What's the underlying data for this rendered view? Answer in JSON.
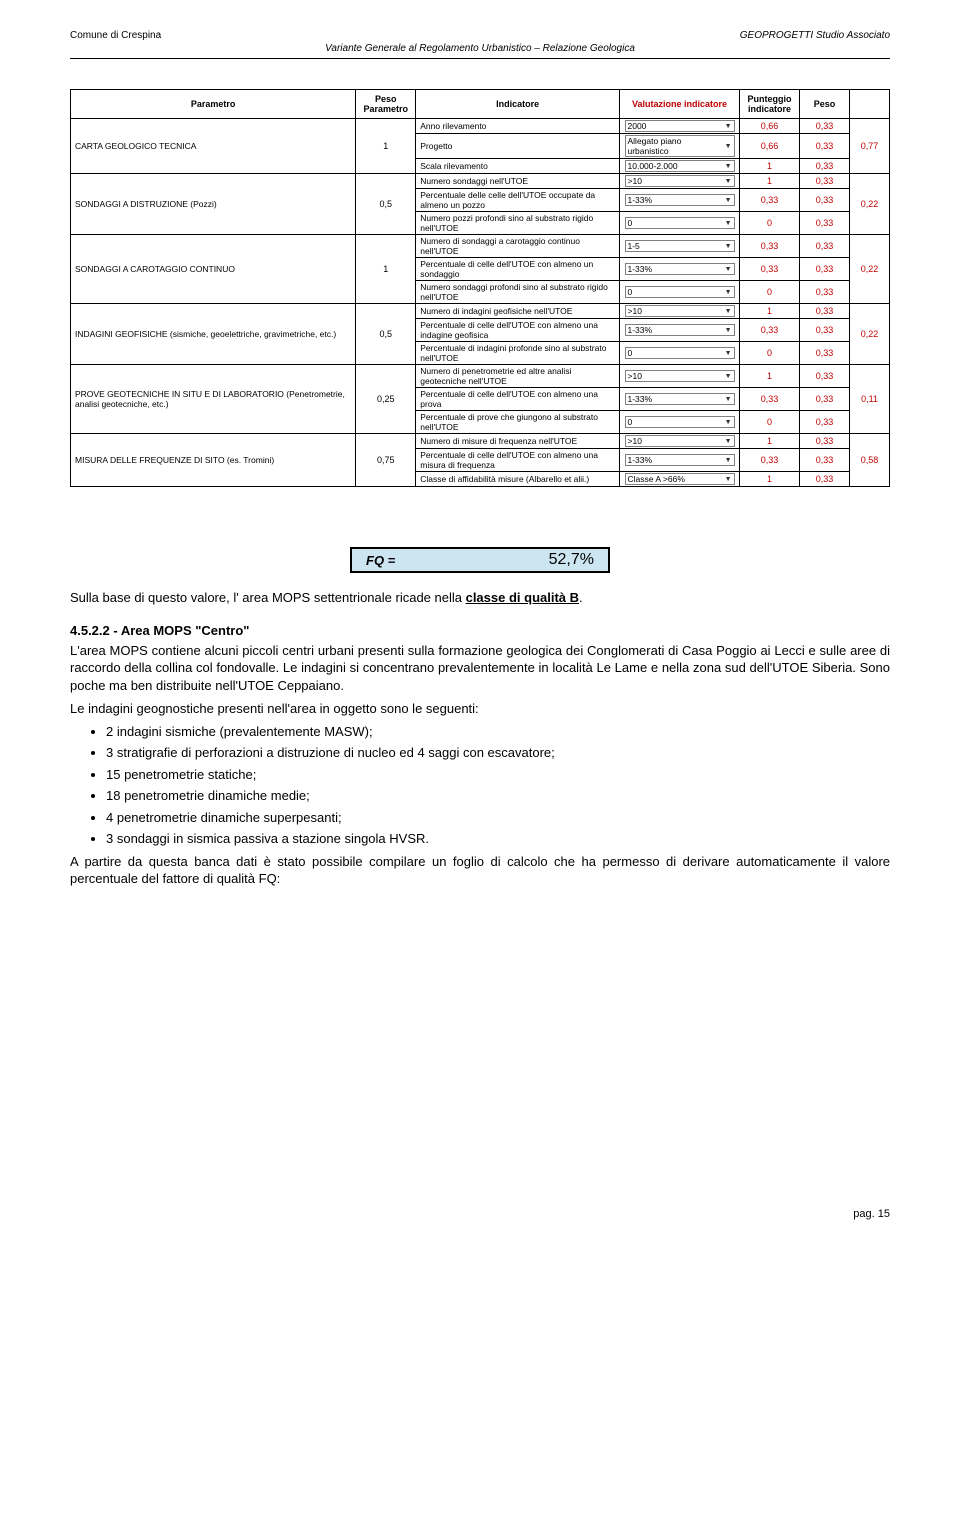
{
  "header": {
    "left": "Comune di Crespina",
    "right": "GEOPROGETTI Studio Associato",
    "subtitle": "Variante Generale al Regolamento Urbanistico – Relazione Geologica"
  },
  "table": {
    "headers": {
      "parametro": "Parametro",
      "peso_parametro": "Peso Parametro",
      "indicatore": "Indicatore",
      "valutazione": "Valutazione indicatore",
      "punteggio": "Punteggio indicatore",
      "peso": "Peso"
    },
    "groups": [
      {
        "label": "CARTA GEOLOGICO TECNICA",
        "peso_param": "1",
        "peso_tot": "0,77",
        "rows": [
          {
            "ind": "Anno rilevamento",
            "val": "2000",
            "pt": "0,66",
            "peso": "0,33"
          },
          {
            "ind": "Progetto",
            "val": "Allegato piano urbanistico",
            "pt": "0,66",
            "peso": "0,33"
          },
          {
            "ind": "Scala rilevamento",
            "val": "10.000-2.000",
            "pt": "1",
            "peso": "0,33"
          }
        ]
      },
      {
        "label": "SONDAGGI A DISTRUZIONE (Pozzi)",
        "peso_param": "0,5",
        "peso_tot": "0,22",
        "rows": [
          {
            "ind": "Numero sondaggi nell'UTOE",
            "val": ">10",
            "pt": "1",
            "peso": "0,33"
          },
          {
            "ind": "Percentuale delle celle dell'UTOE occupate da almeno un pozzo",
            "val": "1-33%",
            "pt": "0,33",
            "peso": "0,33"
          },
          {
            "ind": "Numero pozzi profondi sino al substrato rigido nell'UTOE",
            "val": "0",
            "pt": "0",
            "peso": "0,33"
          }
        ]
      },
      {
        "label": "SONDAGGI A CAROTAGGIO CONTINUO",
        "peso_param": "1",
        "peso_tot": "0,22",
        "rows": [
          {
            "ind": "Numero di sondaggi a carotaggio continuo nell'UTOE",
            "val": "1-5",
            "pt": "0,33",
            "peso": "0,33"
          },
          {
            "ind": "Percentuale di celle dell'UTOE con almeno un sondaggio",
            "val": "1-33%",
            "pt": "0,33",
            "peso": "0,33"
          },
          {
            "ind": "Numero sondaggi profondi sino al substrato rigido nell'UTOE",
            "val": "0",
            "pt": "0",
            "peso": "0,33"
          }
        ]
      },
      {
        "label": "INDAGINI GEOFISICHE    (sismiche, geoelettriche, gravimetriche, etc.)",
        "peso_param": "0,5",
        "peso_tot": "0,22",
        "rows": [
          {
            "ind": "Numero di indagini geofisiche nell'UTOE",
            "val": ">10",
            "pt": "1",
            "peso": "0,33"
          },
          {
            "ind": "Percentuale di celle dell'UTOE con almeno una indagine geofisica",
            "val": "1-33%",
            "pt": "0,33",
            "peso": "0,33"
          },
          {
            "ind": "Percentuale di indagini profonde sino al substrato nell'UTOE",
            "val": "0",
            "pt": "0",
            "peso": "0,33"
          }
        ]
      },
      {
        "label": "PROVE GEOTECNICHE IN SITU E DI LABORATORIO (Penetrometrie, analisi geotecniche, etc.)",
        "peso_param": "0,25",
        "peso_tot": "0,11",
        "rows": [
          {
            "ind": "Numero di penetrometrie ed altre analisi geotecniche nell'UTOE",
            "val": ">10",
            "pt": "1",
            "peso": "0,33"
          },
          {
            "ind": "Percentuale di celle dell'UTOE con almeno una prova",
            "val": "1-33%",
            "pt": "0,33",
            "peso": "0,33"
          },
          {
            "ind": "Percentuale di prove che giungono al substrato nell'UTOE",
            "val": "0",
            "pt": "0",
            "peso": "0,33"
          }
        ]
      },
      {
        "label": "MISURA DELLE FREQUENZE DI SITO   (es. Tromini)",
        "peso_param": "0,75",
        "peso_tot": "0,58",
        "rows": [
          {
            "ind": "Numero di misure di frequenza nell'UTOE",
            "val": ">10",
            "pt": "1",
            "peso": "0,33"
          },
          {
            "ind": "Percentuale di celle dell'UTOE con almeno una misura di frequenza",
            "val": "1-33%",
            "pt": "0,33",
            "peso": "0,33"
          },
          {
            "ind": "Classe di affidabilità misure (Albarello et alii.)",
            "val": "Classe A >66%",
            "pt": "1",
            "peso": "0,33"
          }
        ]
      }
    ]
  },
  "fq": {
    "label": "FQ =",
    "value": "52,7%"
  },
  "body": {
    "intro": "Sulla base di questo valore, l' area MOPS settentrionale ricade nella ",
    "intro_underlined": "classe di qualità B",
    "intro_after": ".",
    "section_heading": "4.5.2.2 - Area MOPS \"Centro\"",
    "p2": "L'area MOPS contiene alcuni piccoli centri urbani presenti sulla formazione geologica dei Conglomerati di Casa Poggio ai Lecci e sulle aree di raccordo della collina col fondovalle. Le indagini si concentrano prevalentemente in località Le Lame e nella zona sud dell'UTOE Siberia. Sono poche ma ben distribuite nell'UTOE Ceppaiano.",
    "p3": "Le indagini geognostiche presenti nell'area in oggetto sono le seguenti:",
    "bullets": [
      "2 indagini sismiche (prevalentemente MASW);",
      "3 stratigrafie di perforazioni a distruzione di nucleo ed 4 saggi con escavatore;",
      "15 penetrometrie statiche;",
      "18 penetrometrie dinamiche medie;",
      "4 penetrometrie dinamiche superpesanti;",
      "3 sondaggi in sismica passiva a stazione singola HVSR."
    ],
    "p4": "A partire da questa banca dati è stato possibile compilare un foglio di calcolo che ha permesso di derivare automaticamente il valore percentuale del fattore di qualità FQ:"
  },
  "footer": {
    "page": "pag. 15"
  }
}
